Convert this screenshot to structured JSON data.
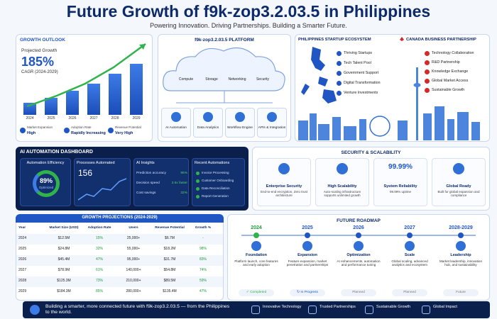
{
  "header": {
    "title": "Future Growth of f9k-zop3.2.03.5 in Philippines",
    "subtitle": "Powering Innovation. Driving Partnerships. Building a Smarter Future."
  },
  "growth_outlook": {
    "title": "GROWTH OUTLOOK",
    "label": "Projected Growth",
    "value": "185%",
    "caption": "CAGR (2024-2029)",
    "years": [
      "2024",
      "2025",
      "2026",
      "2027",
      "2028",
      "2029"
    ],
    "bars": [
      22,
      32,
      45,
      58,
      76,
      95
    ],
    "stats": [
      {
        "label": "Market Expansion",
        "value": "High"
      },
      {
        "label": "Adoption Rate",
        "value": "Rapidly Increasing"
      },
      {
        "label": "Revenue Potential",
        "value": "Very High"
      }
    ]
  },
  "platform": {
    "title": "f9k-zop3.2.03.5 PLATFORM",
    "cloud_items": [
      "Compute",
      "Storage",
      "Networking",
      "Security"
    ],
    "modules": [
      "AI Automation",
      "Data Analytics",
      "Workflow Engine",
      "APIs & Integration"
    ]
  },
  "ecosystem": {
    "title": "PHILIPPINES STARTUP ECOSYSTEM",
    "items": [
      "Thriving Startups",
      "Tech Talent Pool",
      "Government Support",
      "Digital Transformation",
      "Venture Investments"
    ]
  },
  "partnership": {
    "title": "CANADA BUSINESS PARTNERSHIP",
    "items": [
      "Technology Collaboration",
      "R&D Partnership",
      "Knowledge Exchange",
      "Global Market Access",
      "Sustainable Growth"
    ]
  },
  "dashboard": {
    "title": "AI AUTOMATION DASHBOARD",
    "efficiency": {
      "title": "Automation Efficiency",
      "value": "89%",
      "label": "Optimized"
    },
    "processes": {
      "title": "Processes Automated",
      "value": "156"
    },
    "insights": {
      "title": "AI Insights",
      "rows": [
        [
          "Prediction accuracy",
          "95%"
        ],
        [
          "Decision speed",
          "3.5x faster"
        ],
        [
          "Cost savings",
          "32%"
        ]
      ]
    },
    "recent": {
      "title": "Recent Automations",
      "items": [
        "Invoice Processing",
        "Customer Onboarding",
        "Data Reconciliation",
        "Report Generation"
      ]
    }
  },
  "security": {
    "title": "SECURITY & SCALABILITY",
    "cards": [
      {
        "title": "Enterprise Security",
        "text": "End-to-end encryption, Zero trust architecture"
      },
      {
        "title": "High Scalability",
        "text": "Auto-scaling infrastructure supports unlimited growth"
      },
      {
        "value": "99.99%",
        "title": "System Reliability",
        "text": "99.99% uptime"
      },
      {
        "title": "Global Ready",
        "text": "Built for global expansion and compliance"
      }
    ]
  },
  "projections": {
    "title": "GROWTH PROJECTIONS (2024-2029)",
    "columns": [
      "Year",
      "Market Size (USD)",
      "Adoption Rate",
      "Users",
      "Revenue Potential",
      "Growth %"
    ],
    "rows": [
      [
        "2024",
        "$12.5M",
        "15%",
        "25,000+",
        "$6.7M",
        "-"
      ],
      [
        "2025",
        "$24.8M",
        "32%",
        "55,000+",
        "$18.2M",
        "98%"
      ],
      [
        "2026",
        "$45.4M",
        "47%",
        "95,000+",
        "$31.7M",
        "83%"
      ],
      [
        "2027",
        "$78.9M",
        "61%",
        "140,000+",
        "$54.8M",
        "74%"
      ],
      [
        "2028",
        "$125.3M",
        "73%",
        "210,000+",
        "$89.5M",
        "59%"
      ],
      [
        "2029",
        "$184.3M",
        "85%",
        "280,000+",
        "$135.4M",
        "47%"
      ]
    ]
  },
  "roadmap": {
    "title": "FUTURE ROADMAP",
    "stages": [
      {
        "year": "2024",
        "title": "Foundation",
        "text": "Platform launch, core features and early adoption",
        "status": "✓ Completed"
      },
      {
        "year": "2025",
        "title": "Expansion",
        "text": "Feature expansion, market penetration and partnerships",
        "status": "↻ In Progress"
      },
      {
        "year": "2026",
        "title": "Optimization",
        "text": "AI enhancements, automation and performance tuning",
        "status": "Planned"
      },
      {
        "year": "2027",
        "title": "Scale",
        "text": "Global scaling, advanced analytics and ecosystem",
        "status": "Planned"
      },
      {
        "year": "2028-2029",
        "title": "Leadership",
        "text": "Market leadership, innovation hub, and sustainability",
        "status": "Future"
      }
    ]
  },
  "footer": {
    "text": "Building a smarter, more connected future with f9k-zop3.2.03.5 — from the Philippines to the world.",
    "items": [
      "Innovative Technology",
      "Trusted Partnerships",
      "Sustainable Growth",
      "Global Impact"
    ]
  }
}
